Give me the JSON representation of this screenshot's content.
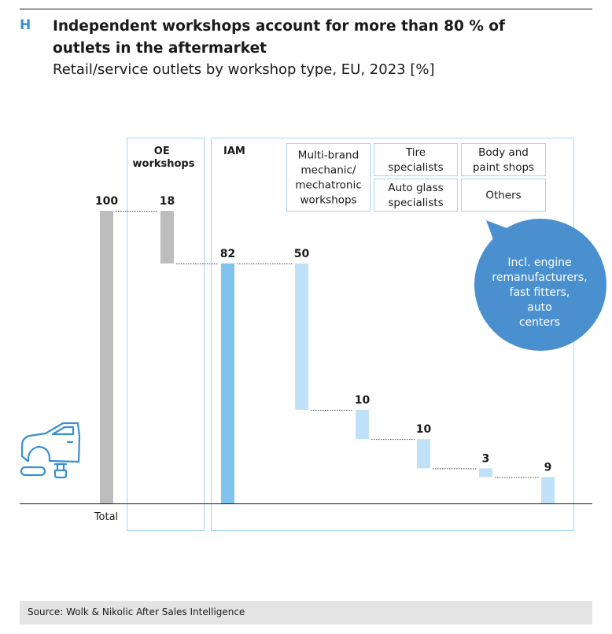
{
  "header": {
    "letter": "H",
    "title": "Independent workshops account for more than 80 % of outlets in the aftermarket",
    "subtitle": "Retail/service outlets by workshop type, EU, 2023 [%]"
  },
  "groups": {
    "oe_label": "OE workshops",
    "iam_label": "IAM"
  },
  "callout": "Incl. engine remanufacturers, fast fitters, auto centers",
  "footer": {
    "source": "Source: Wolk & Nikolic After Sales Intelligence"
  },
  "colors": {
    "accent": "#3b8fd1",
    "gray": "#bdbdbd",
    "iam": "#7fc3ee",
    "light": "#bfe2f8",
    "frame": "#a9d4ef"
  },
  "chart_data": {
    "type": "bar",
    "subtype": "waterfall",
    "unit": "%",
    "ylim": [
      0,
      100
    ],
    "bars": [
      {
        "label": "Total",
        "value": 100,
        "base": 0,
        "value_label": "100",
        "color": "#bdbdbd"
      },
      {
        "label": "OE workshops",
        "value": 18,
        "base": 82,
        "value_label": "18",
        "color": "#bdbdbd"
      },
      {
        "label": "IAM",
        "value": 82,
        "base": 0,
        "value_label": "82",
        "color": "#7fc3ee"
      },
      {
        "label": "Multi-brand mechanic/ mechatronic workshops",
        "value": 50,
        "base": 32,
        "value_label": "50",
        "color": "#bfe2f8"
      },
      {
        "label": "Tire specialists",
        "value": 10,
        "base": 22,
        "value_label": "10",
        "color": "#bfe2f8"
      },
      {
        "label": "Auto glass specialists",
        "value": 10,
        "base": 12,
        "value_label": "10",
        "color": "#bfe2f8"
      },
      {
        "label": "Body and paint shops",
        "value": 3,
        "base": 9,
        "value_label": "3",
        "color": "#bfe2f8"
      },
      {
        "label": "Others",
        "value": 9,
        "base": 0,
        "value_label": "9",
        "color": "#bfe2f8"
      }
    ],
    "category_boxes": [
      [
        "Multi-brand",
        "mechanic/",
        "mechatronic",
        "workshops"
      ],
      [
        "Tire",
        "specialists"
      ],
      [
        "Body and",
        "paint shops"
      ],
      [
        "Auto glass",
        "specialists"
      ],
      [
        "Others"
      ]
    ],
    "x_label": "Total"
  }
}
